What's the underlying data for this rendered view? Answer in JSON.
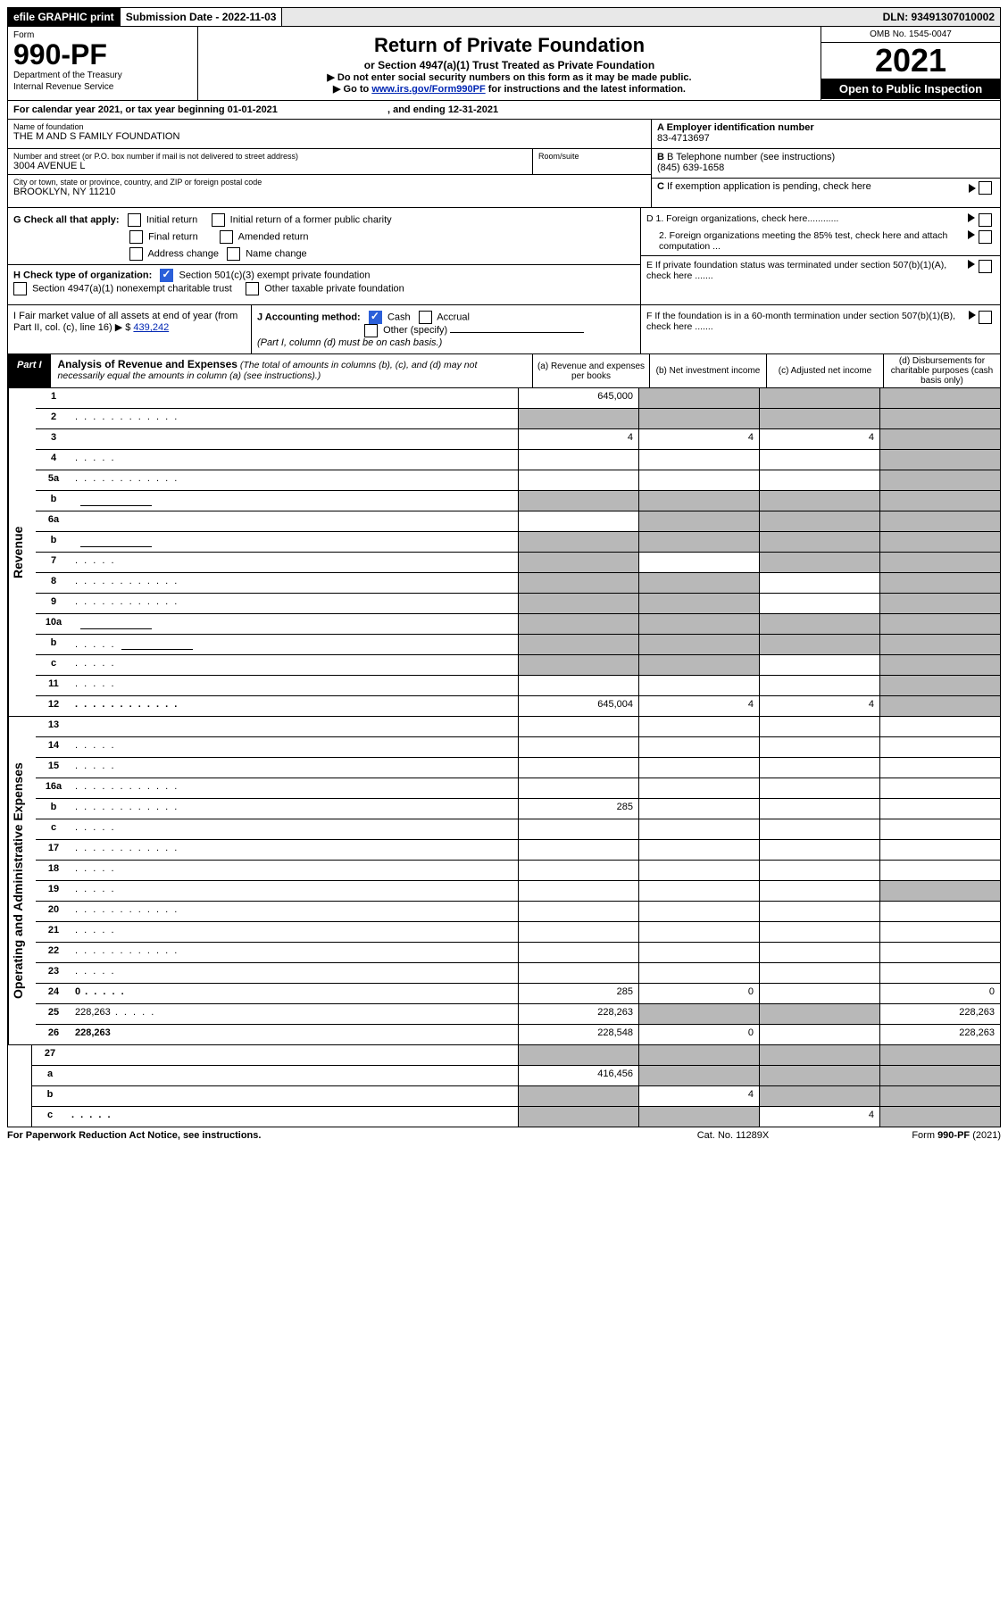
{
  "topbar": {
    "efile": "efile GRAPHIC print",
    "submission_label": "Submission Date - 2022-11-03",
    "dln": "DLN: 93491307010002"
  },
  "header": {
    "form_word": "Form",
    "form_number": "990-PF",
    "dept1": "Department of the Treasury",
    "dept2": "Internal Revenue Service",
    "title": "Return of Private Foundation",
    "subtitle": "or Section 4947(a)(1) Trust Treated as Private Foundation",
    "note1": "▶ Do not enter social security numbers on this form as it may be made public.",
    "note2_pre": "▶ Go to ",
    "note2_link": "www.irs.gov/Form990PF",
    "note2_post": " for instructions and the latest information.",
    "omb": "OMB No. 1545-0047",
    "year": "2021",
    "open": "Open to Public Inspection"
  },
  "calyear": {
    "text": "For calendar year 2021, or tax year beginning 01-01-2021",
    "ending": ", and ending 12-31-2021"
  },
  "info": {
    "name_label": "Name of foundation",
    "name_val": "THE M AND S FAMILY FOUNDATION",
    "addr_label": "Number and street (or P.O. box number if mail is not delivered to street address)",
    "addr_val": "3004 AVENUE L",
    "room_label": "Room/suite",
    "city_label": "City or town, state or province, country, and ZIP or foreign postal code",
    "city_val": "BROOKLYN, NY  11210",
    "a_label": "A Employer identification number",
    "a_val": "83-4713697",
    "b_label": "B Telephone number (see instructions)",
    "b_val": "(845) 639-1658",
    "c_label": "C If exemption application is pending, check here"
  },
  "g": {
    "label": "G Check all that apply:",
    "opts": [
      "Initial return",
      "Initial return of a former public charity",
      "Final return",
      "Amended return",
      "Address change",
      "Name change"
    ]
  },
  "h": {
    "label": "H Check type of organization:",
    "o1": "Section 501(c)(3) exempt private foundation",
    "o2": "Section 4947(a)(1) nonexempt charitable trust",
    "o3": "Other taxable private foundation"
  },
  "d": {
    "d1": "D 1. Foreign organizations, check here............",
    "d2": "2. Foreign organizations meeting the 85% test, check here and attach computation ...",
    "e": "E  If private foundation status was terminated under section 507(b)(1)(A), check here .......",
    "f": "F  If the foundation is in a 60-month termination under section 507(b)(1)(B), check here ......."
  },
  "i": {
    "label": "I Fair market value of all assets at end of year (from Part II, col. (c), line 16)",
    "arrow": "▶ $",
    "val": "439,242"
  },
  "j": {
    "label": "J Accounting method:",
    "cash": "Cash",
    "accrual": "Accrual",
    "other": "Other (specify)",
    "note": "(Part I, column (d) must be on cash basis.)"
  },
  "part1": {
    "label": "Part I",
    "title": "Analysis of Revenue and Expenses",
    "note": "(The total of amounts in columns (b), (c), and (d) may not necessarily equal the amounts in column (a) (see instructions).)",
    "col_a": "(a)   Revenue and expenses per books",
    "col_b": "(b)   Net investment income",
    "col_c": "(c)   Adjusted net income",
    "col_d": "(d)  Disbursements for charitable purposes (cash basis only)"
  },
  "sections": {
    "revenue": "Revenue",
    "expenses": "Operating and Administrative Expenses"
  },
  "revenue_rows": [
    {
      "n": "1",
      "d": "",
      "a": "645,000",
      "b": "",
      "c": "",
      "sb": true,
      "sc": true,
      "sd": true
    },
    {
      "n": "2",
      "d": "",
      "a": "",
      "b": "",
      "c": "",
      "sa": true,
      "sb": true,
      "sc": true,
      "sd": true,
      "dots": true
    },
    {
      "n": "3",
      "d": "",
      "a": "4",
      "b": "4",
      "c": "4",
      "sd": true
    },
    {
      "n": "4",
      "d": "",
      "a": "",
      "b": "",
      "c": "",
      "sd": true,
      "dots_s": true
    },
    {
      "n": "5a",
      "d": "",
      "a": "",
      "b": "",
      "c": "",
      "sd": true,
      "dots": true
    },
    {
      "n": "b",
      "d": "",
      "a": "",
      "b": "",
      "c": "",
      "sa": true,
      "sb": true,
      "sc": true,
      "sd": true,
      "box": true
    },
    {
      "n": "6a",
      "d": "",
      "a": "",
      "b": "",
      "c": "",
      "sb": true,
      "sc": true,
      "sd": true
    },
    {
      "n": "b",
      "d": "",
      "a": "",
      "b": "",
      "c": "",
      "sa": true,
      "sb": true,
      "sc": true,
      "sd": true,
      "box": true
    },
    {
      "n": "7",
      "d": "",
      "a": "",
      "b": "",
      "c": "",
      "sa": true,
      "sc": true,
      "sd": true,
      "dots_s": true
    },
    {
      "n": "8",
      "d": "",
      "a": "",
      "b": "",
      "c": "",
      "sa": true,
      "sb": true,
      "sd": true,
      "dots": true
    },
    {
      "n": "9",
      "d": "",
      "a": "",
      "b": "",
      "c": "",
      "sa": true,
      "sb": true,
      "sd": true,
      "dots": true
    },
    {
      "n": "10a",
      "d": "",
      "a": "",
      "b": "",
      "c": "",
      "sa": true,
      "sb": true,
      "sc": true,
      "sd": true,
      "box": true
    },
    {
      "n": "b",
      "d": "",
      "a": "",
      "b": "",
      "c": "",
      "sa": true,
      "sb": true,
      "sc": true,
      "sd": true,
      "box": true,
      "dots_s": true
    },
    {
      "n": "c",
      "d": "",
      "a": "",
      "b": "",
      "c": "",
      "sa": true,
      "sb": true,
      "sd": true,
      "dots_s": true
    },
    {
      "n": "11",
      "d": "",
      "a": "",
      "b": "",
      "c": "",
      "sd": true,
      "dots_s": true
    },
    {
      "n": "12",
      "d": "",
      "a": "645,004",
      "b": "4",
      "c": "4",
      "bold": true,
      "sd": true,
      "dots": true
    }
  ],
  "expense_rows": [
    {
      "n": "13",
      "d": "",
      "a": "",
      "b": "",
      "c": ""
    },
    {
      "n": "14",
      "d": "",
      "a": "",
      "b": "",
      "c": "",
      "dots_s": true
    },
    {
      "n": "15",
      "d": "",
      "a": "",
      "b": "",
      "c": "",
      "dots_s": true
    },
    {
      "n": "16a",
      "d": "",
      "a": "",
      "b": "",
      "c": "",
      "dots": true
    },
    {
      "n": "b",
      "d": "",
      "a": "285",
      "b": "",
      "c": "",
      "dots": true
    },
    {
      "n": "c",
      "d": "",
      "a": "",
      "b": "",
      "c": "",
      "dots_s": true
    },
    {
      "n": "17",
      "d": "",
      "a": "",
      "b": "",
      "c": "",
      "dots": true
    },
    {
      "n": "18",
      "d": "",
      "a": "",
      "b": "",
      "c": "",
      "dots_s": true
    },
    {
      "n": "19",
      "d": "",
      "a": "",
      "b": "",
      "c": "",
      "sd": true,
      "dots_s": true
    },
    {
      "n": "20",
      "d": "",
      "a": "",
      "b": "",
      "c": "",
      "dots": true
    },
    {
      "n": "21",
      "d": "",
      "a": "",
      "b": "",
      "c": "",
      "dots_s": true
    },
    {
      "n": "22",
      "d": "",
      "a": "",
      "b": "",
      "c": "",
      "dots": true
    },
    {
      "n": "23",
      "d": "",
      "a": "",
      "b": "",
      "c": "",
      "dots_s": true
    },
    {
      "n": "24",
      "d": "0",
      "a": "285",
      "b": "0",
      "c": "",
      "bold": true,
      "dots_s": true
    },
    {
      "n": "25",
      "d": "228,263",
      "a": "228,263",
      "b": "",
      "c": "",
      "sb": true,
      "sc": true,
      "dots_s": true
    },
    {
      "n": "26",
      "d": "228,263",
      "a": "228,548",
      "b": "0",
      "c": "",
      "bold": true
    }
  ],
  "bottom_rows": [
    {
      "n": "27",
      "d": "",
      "a": "",
      "b": "",
      "c": "",
      "sa": true,
      "sb": true,
      "sc": true,
      "sd": true
    },
    {
      "n": "a",
      "d": "",
      "a": "416,456",
      "b": "",
      "c": "",
      "bold": true,
      "sb": true,
      "sc": true,
      "sd": true
    },
    {
      "n": "b",
      "d": "",
      "a": "",
      "b": "4",
      "c": "",
      "bold": true,
      "sa": true,
      "sc": true,
      "sd": true
    },
    {
      "n": "c",
      "d": "",
      "a": "",
      "b": "",
      "c": "4",
      "bold": true,
      "sa": true,
      "sb": true,
      "sd": true,
      "dots_s": true
    }
  ],
  "footer": {
    "left": "For Paperwork Reduction Act Notice, see instructions.",
    "mid": "Cat. No. 11289X",
    "right": "Form 990-PF (2021)"
  }
}
